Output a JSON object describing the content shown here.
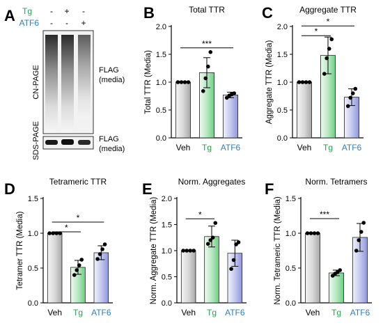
{
  "panel_a": {
    "letter": "A",
    "rows": [
      {
        "label": "Tg",
        "color": "#22a54a",
        "marks": [
          "-",
          "+",
          "-"
        ]
      },
      {
        "label": "ATF6",
        "color": "#2a7fbf",
        "marks": [
          "-",
          "-",
          "+"
        ]
      }
    ],
    "gel_top": {
      "side_label": "CN-PAGE",
      "right_label": [
        "FLAG",
        "(media)"
      ]
    },
    "gel_bottom": {
      "side_label": "SDS-PAGE",
      "right_label": [
        "FLAG",
        "(media)"
      ]
    }
  },
  "chart_data": [
    {
      "letter": "B",
      "type": "bar",
      "title": "Total TTR",
      "ylabel": "Total TTR (Media)",
      "ylim": [
        0,
        2.0
      ],
      "yticks": [
        "0.0",
        "0.5",
        "1.0",
        "1.5",
        "2.0"
      ],
      "categories": [
        "Veh",
        "Tg",
        "ATF6"
      ],
      "category_colors": [
        "#000000",
        "#22a54a",
        "#2a7fbf"
      ],
      "fills": [
        "#e8e8e8",
        "#d4f0d8",
        "#d6d9f3"
      ],
      "values": [
        1.0,
        1.17,
        0.77
      ],
      "errors": [
        0,
        0.27,
        0.05
      ],
      "points": [
        [
          1,
          1,
          1,
          1
        ],
        [
          0.84,
          1.07,
          1.28,
          1.54
        ],
        [
          0.72,
          0.76,
          0.78,
          0.8
        ]
      ],
      "significance": [
        {
          "from": 0,
          "to": 2,
          "label": "***"
        }
      ]
    },
    {
      "letter": "C",
      "type": "bar",
      "title": "Aggregate TTR",
      "ylabel": "Aggregate TTR (Media)",
      "ylim": [
        0,
        2.0
      ],
      "yticks": [
        "0.0",
        "0.5",
        "1.0",
        "1.5",
        "2.0"
      ],
      "categories": [
        "Veh",
        "Tg",
        "ATF6"
      ],
      "category_colors": [
        "#000000",
        "#22a54a",
        "#2a7fbf"
      ],
      "fills": [
        "#e8e8e8",
        "#d4f0d8",
        "#d6d9f3"
      ],
      "values": [
        1.0,
        1.48,
        0.73
      ],
      "errors": [
        0,
        0.33,
        0.15
      ],
      "points": [
        [
          1,
          1,
          1,
          1
        ],
        [
          1.15,
          1.43,
          1.6,
          1.77
        ],
        [
          0.57,
          0.72,
          0.8,
          0.88
        ]
      ],
      "significance": [
        {
          "from": 0,
          "to": 1,
          "label": "*"
        },
        {
          "from": 0,
          "to": 2,
          "label": "*"
        }
      ]
    },
    {
      "letter": "D",
      "type": "bar",
      "title": "Tetrameric TTR",
      "ylabel": "Tetramer TTR (Media)",
      "ylim": [
        0,
        1.5
      ],
      "yticks": [
        "0.0",
        "0.5",
        "1.0",
        "1.5"
      ],
      "categories": [
        "Veh",
        "Tg",
        "ATF6"
      ],
      "category_colors": [
        "#000000",
        "#22a54a",
        "#2a7fbf"
      ],
      "fills": [
        "#e8e8e8",
        "#d4f0d8",
        "#d6d9f3"
      ],
      "values": [
        1.0,
        0.51,
        0.72
      ],
      "errors": [
        0,
        0.1,
        0.1
      ],
      "points": [
        [
          1,
          1,
          1,
          1
        ],
        [
          0.4,
          0.47,
          0.54,
          0.62
        ],
        [
          0.63,
          0.7,
          0.77,
          0.84
        ]
      ],
      "significance": [
        {
          "from": 0,
          "to": 1,
          "label": "*"
        },
        {
          "from": 0,
          "to": 2,
          "label": "*"
        }
      ]
    },
    {
      "letter": "E",
      "type": "bar",
      "title": "Norm. Aggregates",
      "ylabel": "Norm. Aggregate TTR (Media)",
      "ylim": [
        0,
        2.0
      ],
      "yticks": [
        "0.0",
        "0.5",
        "1.0",
        "1.5",
        "2.0"
      ],
      "categories": [
        "Veh",
        "Tg",
        "ATF6"
      ],
      "category_colors": [
        "#000000",
        "#22a54a",
        "#2a7fbf"
      ],
      "fills": [
        "#e8e8e8",
        "#d4f0d8",
        "#d6d9f3"
      ],
      "values": [
        1.0,
        1.27,
        0.95
      ],
      "errors": [
        0,
        0.2,
        0.25
      ],
      "points": [
        [
          1,
          1,
          1,
          1
        ],
        [
          1.13,
          1.2,
          1.25,
          1.53
        ],
        [
          0.65,
          0.82,
          1.12,
          1.16
        ]
      ],
      "significance": [
        {
          "from": 0,
          "to": 1,
          "label": "*"
        }
      ]
    },
    {
      "letter": "F",
      "type": "bar",
      "title": "Norm. Tetramers",
      "ylabel": "Norm. Tetrameric TTR (Media)",
      "ylim": [
        0,
        1.5
      ],
      "yticks": [
        "0.0",
        "0.5",
        "1.0",
        "1.5"
      ],
      "categories": [
        "Veh",
        "Tg",
        "ATF6"
      ],
      "category_colors": [
        "#000000",
        "#22a54a",
        "#2a7fbf"
      ],
      "fills": [
        "#e8e8e8",
        "#d4f0d8",
        "#d6d9f3"
      ],
      "values": [
        1.0,
        0.43,
        0.94
      ],
      "errors": [
        0,
        0.04,
        0.2
      ],
      "points": [
        [
          1,
          1,
          1,
          1
        ],
        [
          0.39,
          0.42,
          0.44,
          0.47
        ],
        [
          0.75,
          0.9,
          1.02,
          1.15
        ]
      ],
      "significance": [
        {
          "from": 0,
          "to": 1,
          "label": "***"
        }
      ]
    }
  ]
}
